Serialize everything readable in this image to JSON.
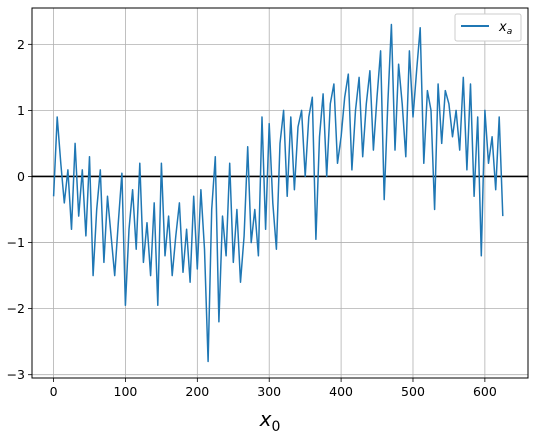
{
  "chart_data": {
    "type": "line",
    "title": "",
    "xlabel": "x",
    "xlabel_subscript": "0",
    "ylabel": "",
    "xlim": [
      -30,
      660
    ],
    "ylim": [
      -3.05,
      2.55
    ],
    "xticks": [
      0,
      100,
      200,
      300,
      400,
      500,
      600
    ],
    "yticks": [
      -3,
      -2,
      -1,
      0,
      1,
      2
    ],
    "grid": true,
    "legend_position": "top-right",
    "reference_line": {
      "y": 0,
      "color": "#000000"
    },
    "series": [
      {
        "name": "x",
        "name_subscript": "a",
        "color": "#1f77b4",
        "points_x": [
          0,
          5,
          10,
          15,
          20,
          25,
          30,
          35,
          40,
          45,
          50,
          55,
          60,
          65,
          70,
          75,
          80,
          85,
          90,
          95,
          100,
          105,
          110,
          115,
          120,
          125,
          130,
          135,
          140,
          145,
          150,
          155,
          160,
          165,
          170,
          175,
          180,
          185,
          190,
          195,
          200,
          205,
          210,
          215,
          220,
          225,
          230,
          235,
          240,
          245,
          250,
          255,
          260,
          265,
          270,
          275,
          280,
          285,
          290,
          295,
          300,
          305,
          310,
          315,
          320,
          325,
          330,
          335,
          340,
          345,
          350,
          355,
          360,
          365,
          370,
          375,
          380,
          385,
          390,
          395,
          400,
          405,
          410,
          415,
          420,
          425,
          430,
          435,
          440,
          445,
          450,
          455,
          460,
          465,
          470,
          475,
          480,
          485,
          490,
          495,
          500,
          505,
          510,
          515,
          520,
          525,
          530,
          535,
          540,
          545,
          550,
          555,
          560,
          565,
          570,
          575,
          580,
          585,
          590,
          595,
          600,
          605,
          610,
          615,
          620,
          625
        ],
        "points_y": [
          -0.3,
          0.9,
          0.2,
          -0.4,
          0.1,
          -0.8,
          0.5,
          -0.6,
          0.1,
          -0.9,
          0.3,
          -1.5,
          -0.5,
          0.1,
          -1.3,
          -0.3,
          -0.9,
          -1.5,
          -0.7,
          0.05,
          -1.95,
          -0.8,
          -0.2,
          -1.1,
          0.2,
          -1.3,
          -0.7,
          -1.5,
          -0.4,
          -1.95,
          0.2,
          -1.2,
          -0.6,
          -1.5,
          -0.9,
          -0.4,
          -1.45,
          -0.8,
          -1.6,
          -0.3,
          -1.4,
          -0.2,
          -1.1,
          -2.8,
          -0.5,
          0.3,
          -2.2,
          -0.6,
          -1.2,
          0.2,
          -1.3,
          -0.5,
          -1.6,
          -0.9,
          0.45,
          -1.0,
          -0.5,
          -1.2,
          0.9,
          -0.8,
          0.8,
          -0.4,
          -1.1,
          0.5,
          1.0,
          -0.3,
          0.9,
          -0.2,
          0.75,
          1.0,
          0.0,
          0.9,
          1.2,
          -0.95,
          0.6,
          1.25,
          0.0,
          1.1,
          1.4,
          0.2,
          0.6,
          1.2,
          1.55,
          0.1,
          1.0,
          1.5,
          0.3,
          1.1,
          1.6,
          0.4,
          1.2,
          1.9,
          -0.35,
          1.1,
          2.3,
          0.4,
          1.7,
          1.1,
          0.3,
          1.9,
          0.9,
          1.6,
          2.25,
          0.2,
          1.3,
          1.0,
          -0.5,
          1.4,
          0.5,
          1.3,
          1.1,
          0.6,
          1.0,
          0.4,
          1.5,
          0.1,
          1.4,
          -0.3,
          0.9,
          -1.2,
          1.0,
          0.2,
          0.6,
          -0.2,
          0.9,
          -0.6
        ]
      }
    ]
  }
}
